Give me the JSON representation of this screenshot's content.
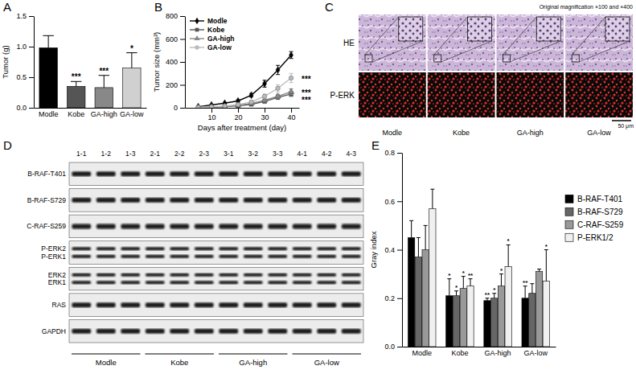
{
  "chart_data": [
    {
      "type": "bar",
      "title": "A",
      "ylabel": "Tumor (g)",
      "categories": [
        "Modle",
        "Kobe",
        "GA-high",
        "GA-low"
      ],
      "values": [
        0.98,
        0.35,
        0.33,
        0.65
      ],
      "errors": [
        0.2,
        0.08,
        0.2,
        0.25
      ],
      "annotations": [
        null,
        "***",
        "***",
        "*"
      ],
      "colors": [
        "#000000",
        "#555555",
        "#888888",
        "#d0d0d0"
      ],
      "ylim": [
        0,
        1.5
      ],
      "yticks": [
        {
          "value": 0,
          "label": "0.0"
        },
        0.5,
        {
          "value": 1,
          "label": "1.0"
        },
        1.5
      ]
    },
    {
      "type": "line",
      "title": "B",
      "xlabel": "Days after treatment (day)",
      "ylabel": "Tumor size (mm³)",
      "x": [
        5,
        10,
        15,
        20,
        25,
        30,
        35,
        40
      ],
      "series": [
        {
          "name": "Modle",
          "color": "#000000",
          "marker": "diamond",
          "values": [
            10,
            25,
            40,
            60,
            110,
            210,
            330,
            460
          ],
          "errors": [
            3,
            5,
            8,
            10,
            15,
            30,
            40,
            30
          ]
        },
        {
          "name": "Kobe",
          "color": "#555555",
          "marker": "square",
          "annotation": "***",
          "values": [
            2,
            5,
            10,
            18,
            30,
            55,
            90,
            120
          ],
          "errors": [
            1,
            2,
            3,
            5,
            8,
            10,
            15,
            20
          ]
        },
        {
          "name": "GA-high",
          "color": "#888888",
          "marker": "triangle",
          "annotation": "***",
          "values": [
            2,
            6,
            12,
            22,
            38,
            65,
            100,
            140
          ],
          "errors": [
            1,
            2,
            3,
            5,
            8,
            12,
            18,
            25
          ]
        },
        {
          "name": "GA-low",
          "color": "#bbbbbb",
          "marker": "circle",
          "annotation": "***",
          "values": [
            3,
            8,
            15,
            28,
            50,
            100,
            170,
            260
          ],
          "errors": [
            1,
            3,
            5,
            8,
            12,
            20,
            30,
            40
          ]
        }
      ],
      "xlim": [
        0,
        43
      ],
      "xticks": [
        10,
        20,
        30,
        40
      ],
      "ylim": [
        0,
        800
      ],
      "yticks": [
        0,
        200,
        400,
        600,
        800
      ],
      "legend": "top-left"
    },
    {
      "type": "image",
      "title": "C",
      "annotation": "Original magnification ×100 and ×400",
      "rows": [
        "HE",
        "P-ERK"
      ],
      "categories": [
        "Modle",
        "Kobe",
        "GA-high",
        "GA-low"
      ],
      "scale_bar": "50 μm"
    },
    {
      "type": "blot",
      "title": "D",
      "lanes": [
        "1-1",
        "1-2",
        "1-3",
        "2-1",
        "2-2",
        "2-3",
        "3-1",
        "3-2",
        "3-3",
        "4-1",
        "4-2",
        "4-3"
      ],
      "rows": [
        [
          "B-RAF-T401"
        ],
        [
          "B-RAF-S729"
        ],
        [
          "C-RAF-S259"
        ],
        [
          "P-ERK2",
          "P-ERK1"
        ],
        [
          "ERK2",
          "ERK1"
        ],
        [
          "RAS"
        ],
        [
          "GAPDH"
        ]
      ],
      "categories": [
        "Modle",
        "Kobe",
        "GA-high",
        "GA-low"
      ]
    },
    {
      "type": "bar",
      "title": "E",
      "ylabel": "Gray index",
      "categories": [
        "Modle",
        "Kobe",
        "GA-high",
        "GA-low"
      ],
      "series": [
        {
          "name": "B-RAF-T401",
          "color": "#000000",
          "values": [
            0.45,
            0.21,
            0.19,
            0.2
          ],
          "errors": [
            0.07,
            0.07,
            0.01,
            0.05
          ],
          "annotations": [
            null,
            "*",
            "**",
            "**"
          ]
        },
        {
          "name": "B-RAF-S729",
          "color": "#666666",
          "values": [
            0.37,
            0.21,
            0.2,
            0.22
          ],
          "errors": [
            0.08,
            0.02,
            0.02,
            0.04
          ],
          "annotations": [
            null,
            "*",
            "*",
            null
          ]
        },
        {
          "name": "C-RAF-S259",
          "color": "#999999",
          "values": [
            0.4,
            0.24,
            0.25,
            0.31
          ],
          "errors": [
            0.1,
            0.05,
            0.05,
            0.01
          ],
          "annotations": [
            null,
            "*",
            "*",
            null
          ]
        },
        {
          "name": "P-ERK1/2",
          "color": "#f0f0f0",
          "values": [
            0.57,
            0.25,
            0.33,
            0.27
          ],
          "errors": [
            0.08,
            0.03,
            0.09,
            0.13
          ],
          "annotations": [
            null,
            "**",
            "*",
            "*"
          ]
        }
      ],
      "ylim": [
        0,
        0.8
      ],
      "yticks": [
        {
          "value": 0,
          "label": "0.0"
        },
        0.2,
        0.4,
        0.6,
        0.8
      ],
      "legend": "right"
    }
  ]
}
